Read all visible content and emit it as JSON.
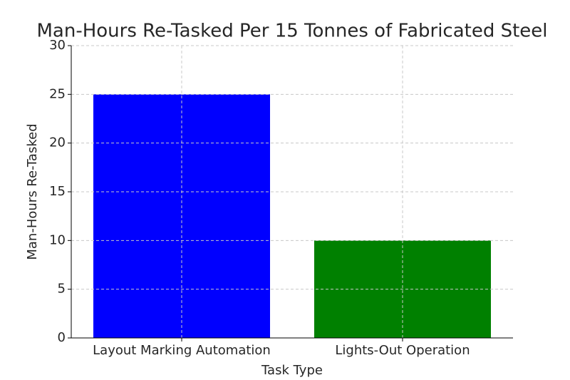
{
  "chart_data": {
    "type": "bar",
    "title": "Man-Hours Re-Tasked Per 15 Tonnes of Fabricated Steel",
    "x_label": "Task Type",
    "y_label": "Man-Hours Re-Tasked",
    "categories": [
      "Layout Marking Automation",
      "Lights-Out Operation"
    ],
    "values": [
      25,
      10
    ],
    "colors": [
      "blue",
      "green"
    ],
    "ylim": [
      0,
      30
    ],
    "yticks": [
      0,
      5,
      10,
      15,
      20,
      25,
      30
    ],
    "grid": true
  }
}
